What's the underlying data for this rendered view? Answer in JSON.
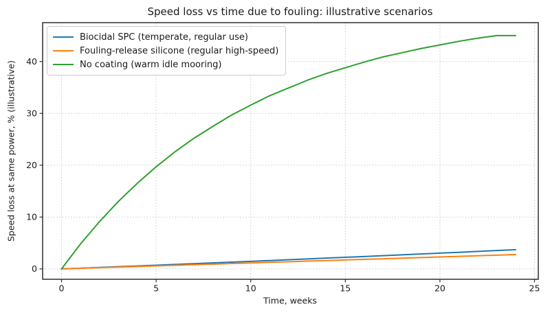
{
  "chart_data": {
    "type": "line",
    "title": "Speed loss vs time due to fouling: illustrative scenarios",
    "xlabel": "Time, weeks",
    "ylabel": "Speed loss at same power, % (illustrative)",
    "x": [
      0,
      1,
      2,
      3,
      4,
      5,
      6,
      7,
      8,
      9,
      10,
      11,
      12,
      13,
      14,
      15,
      16,
      17,
      18,
      19,
      20,
      21,
      22,
      23,
      24
    ],
    "series": [
      {
        "name": "Biocidal SPC (temperate, regular use)",
        "color": "#1f77b4",
        "values": [
          0,
          0.14,
          0.28,
          0.43,
          0.57,
          0.72,
          0.86,
          1.01,
          1.16,
          1.31,
          1.46,
          1.61,
          1.77,
          1.92,
          2.08,
          2.24,
          2.39,
          2.55,
          2.71,
          2.88,
          3.04,
          3.2,
          3.37,
          3.54,
          3.7
        ]
      },
      {
        "name": "Fouling-release silicone (regular high-speed)",
        "color": "#ff7f0e",
        "values": [
          0,
          0.12,
          0.23,
          0.35,
          0.46,
          0.58,
          0.69,
          0.81,
          0.92,
          1.04,
          1.15,
          1.27,
          1.38,
          1.5,
          1.61,
          1.73,
          1.84,
          1.96,
          2.07,
          2.19,
          2.3,
          2.42,
          2.53,
          2.65,
          2.76
        ]
      },
      {
        "name": "No coating (warm idle mooring)",
        "color": "#2ca02c",
        "values": [
          0,
          4.8,
          9.1,
          13.0,
          16.5,
          19.7,
          22.6,
          25.2,
          27.5,
          29.7,
          31.6,
          33.4,
          34.9,
          36.4,
          37.7,
          38.8,
          39.9,
          40.9,
          41.7,
          42.5,
          43.2,
          43.9,
          44.5,
          45.0,
          45.0
        ]
      }
    ],
    "xlim": [
      -1.0,
      25.2
    ],
    "ylim": [
      -2.0,
      47.5
    ],
    "x_ticks": [
      0,
      5,
      10,
      15,
      20,
      25
    ],
    "y_ticks": [
      0,
      10,
      20,
      30,
      40
    ],
    "grid": true,
    "grid_style": "dotted",
    "legend_position": "upper left",
    "colors": {
      "background": "#ffffff",
      "grid": "#c8c8c8",
      "spine": "#2e2e2e",
      "text": "#1a1a1a"
    }
  }
}
